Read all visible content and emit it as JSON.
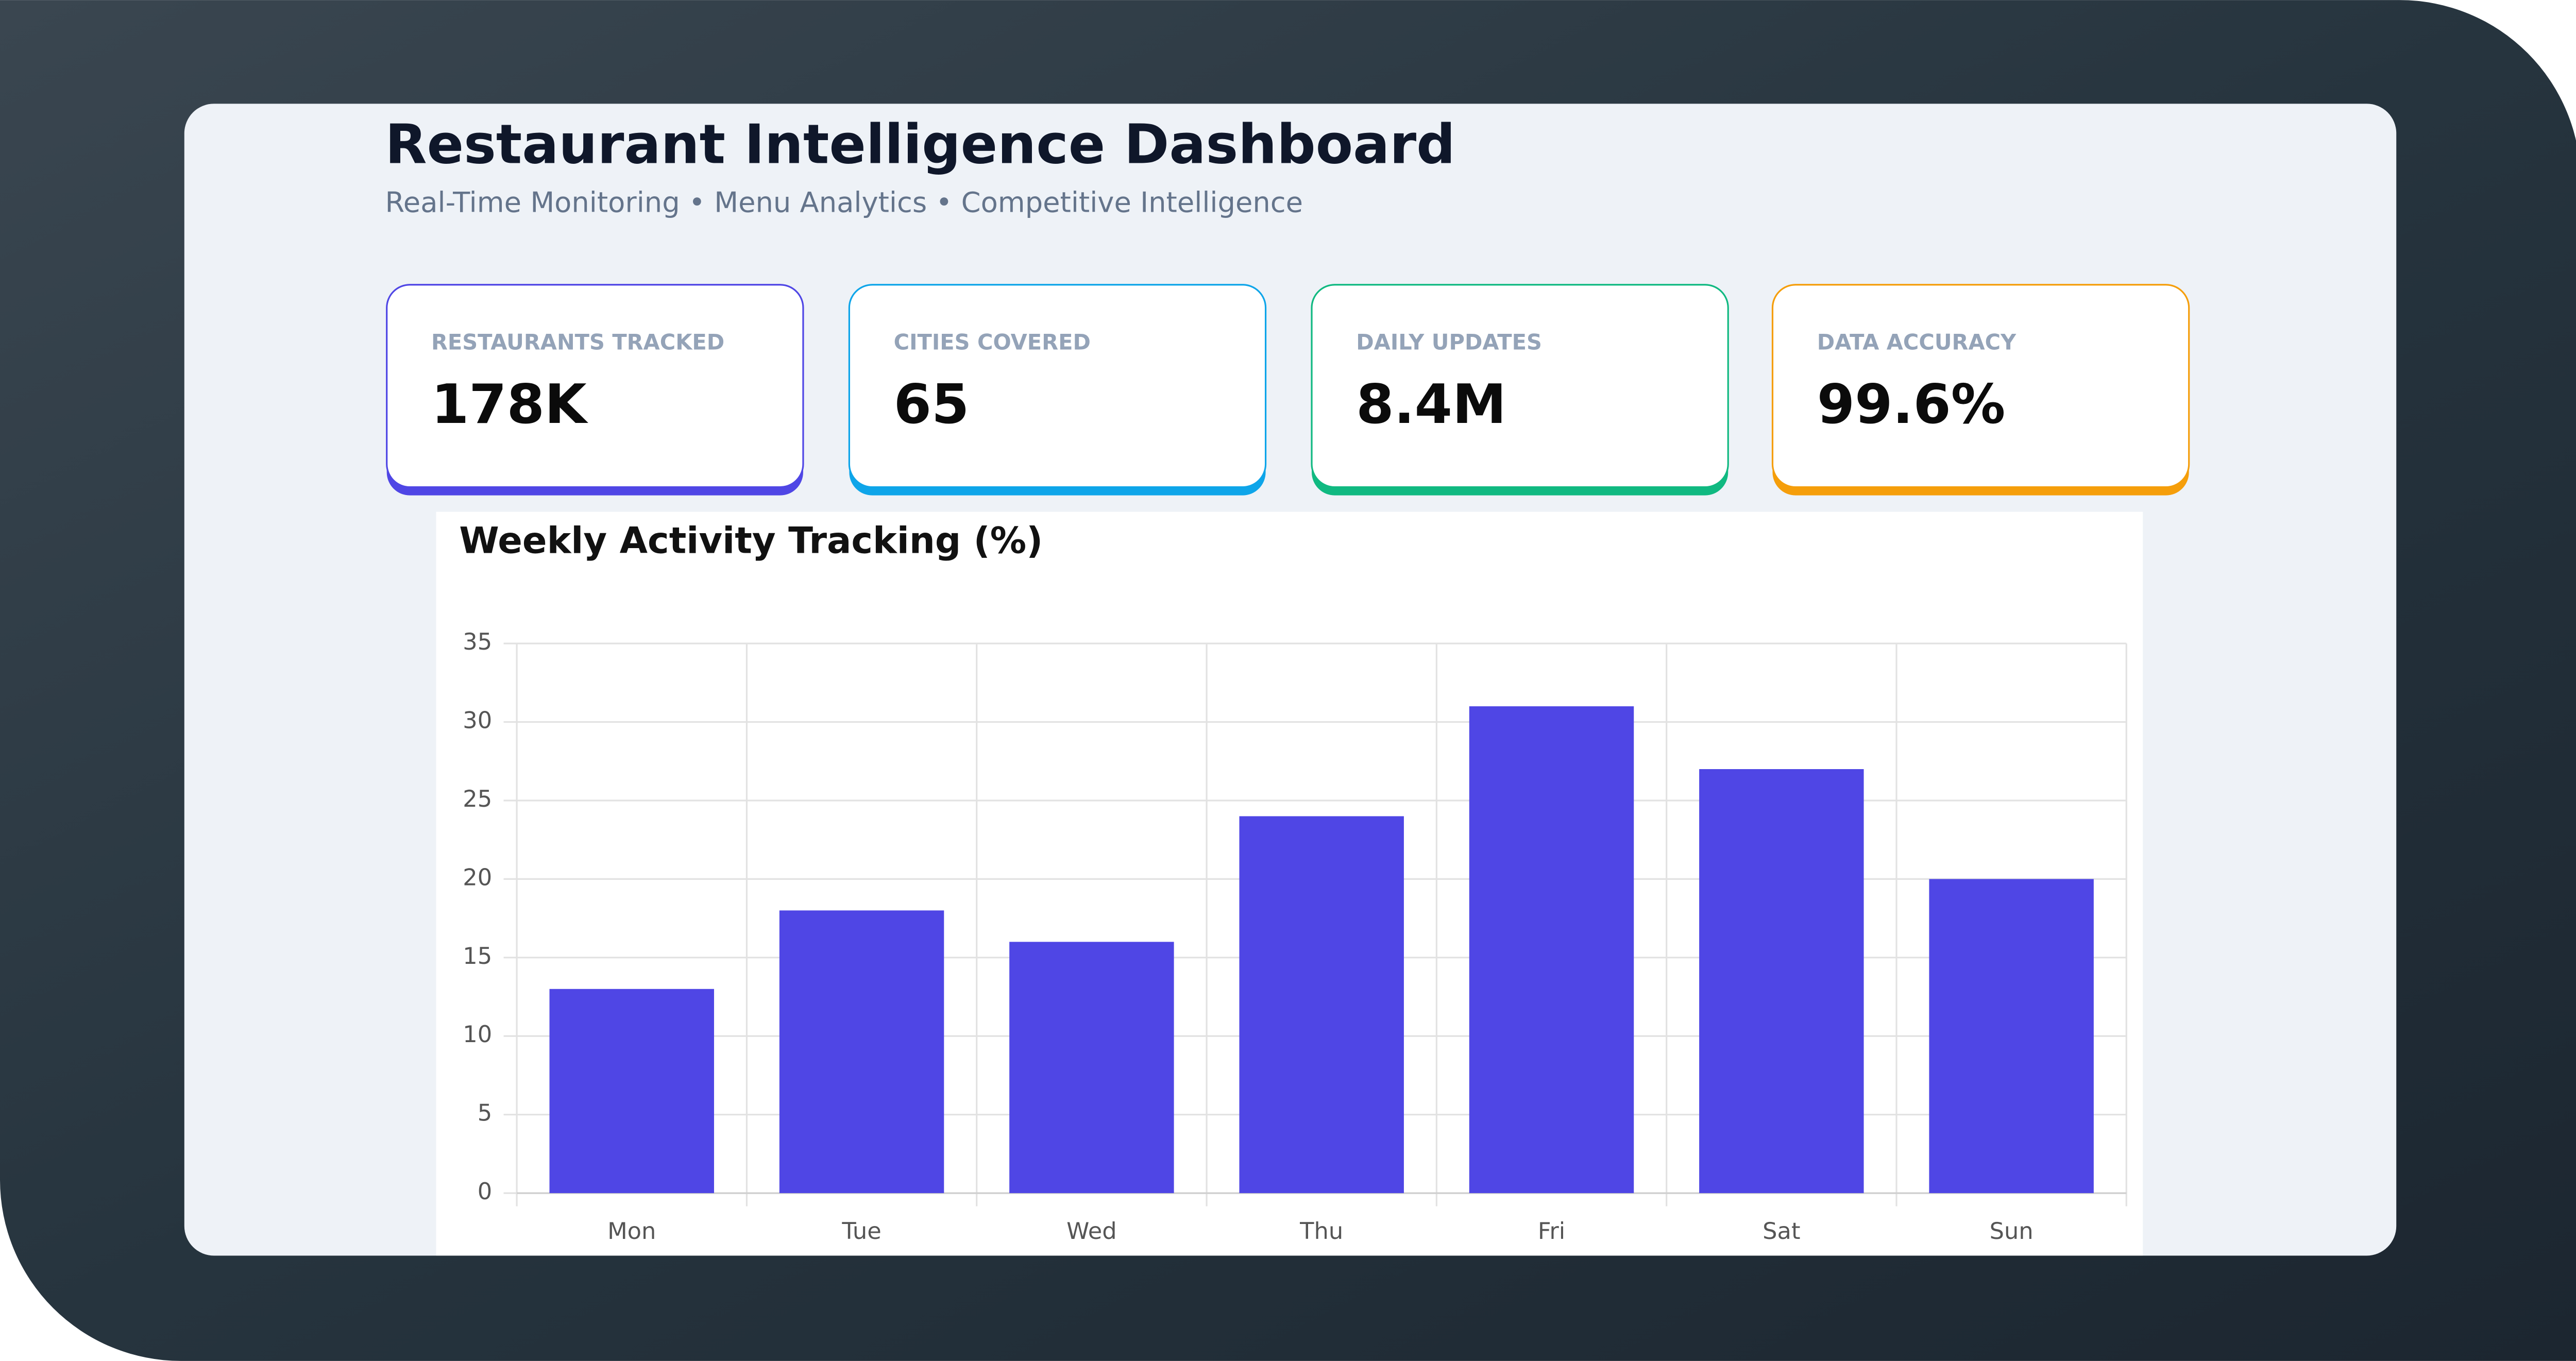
{
  "header": {
    "title": "Restaurant Intelligence Dashboard",
    "subtitle": "Real-Time Monitoring • Menu Analytics • Competitive Intelligence"
  },
  "stats": [
    {
      "label": "RESTAURANTS TRACKED",
      "value": "178K",
      "color": "#4f46e5"
    },
    {
      "label": "CITIES COVERED",
      "value": "65",
      "color": "#0ea5e9"
    },
    {
      "label": "DAILY UPDATES",
      "value": "8.4M",
      "color": "#10b981"
    },
    {
      "label": "DATA ACCURACY",
      "value": "99.6%",
      "color": "#f59e0b"
    }
  ],
  "chart_data": {
    "type": "bar",
    "title": "Weekly Activity Tracking (%)",
    "categories": [
      "Mon",
      "Tue",
      "Wed",
      "Thu",
      "Fri",
      "Sat",
      "Sun"
    ],
    "values": [
      13,
      18,
      16,
      24,
      31,
      27,
      20
    ],
    "color": "#4f46e5",
    "ylim": [
      0,
      35
    ],
    "yticks": [
      0,
      5,
      10,
      15,
      20,
      25,
      30,
      35
    ],
    "grid": true
  }
}
